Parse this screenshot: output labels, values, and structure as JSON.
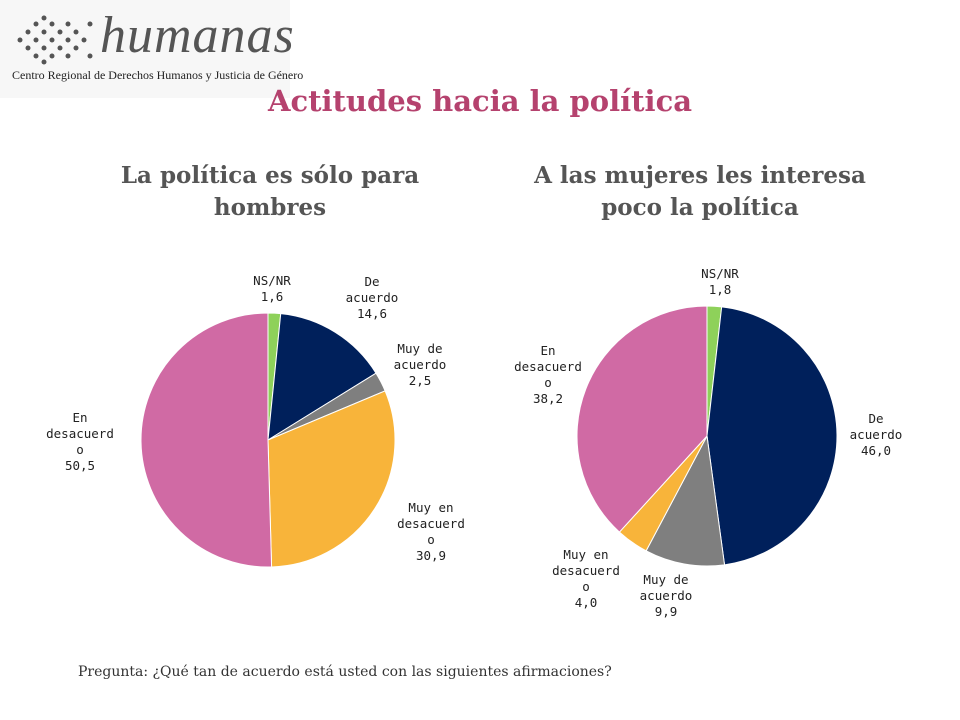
{
  "logo": {
    "wordmark": "humanas",
    "tagline": "Centro Regional de Derechos Humanos y Justicia de Género"
  },
  "title": "Actitudes hacia la política",
  "footnote": "Pregunta: ¿Qué tan de acuerdo está usted con las siguientes afirmaciones?",
  "colors": {
    "title": "#b5426e",
    "ns_nr": "#8ed15a",
    "de_acuerdo": "#00205b",
    "muy_de_acuerdo": "#7f7f7f",
    "muy_en_desacuerdo": "#f8b43a",
    "en_desacuerdo": "#d06aa4"
  },
  "chart_data": [
    {
      "type": "pie",
      "title": "La política es sólo para hombres",
      "slices": [
        {
          "label": [
            "NS/NR"
          ],
          "value": 1.6,
          "value_text": "1,6",
          "color": "#8ed15a"
        },
        {
          "label": [
            "De",
            "acuerdo"
          ],
          "value": 14.6,
          "value_text": "14,6",
          "color": "#00205b"
        },
        {
          "label": [
            "Muy de",
            "acuerdo"
          ],
          "value": 2.5,
          "value_text": "2,5",
          "color": "#7f7f7f"
        },
        {
          "label": [
            "Muy en",
            "desacuerd",
            "o"
          ],
          "value": 30.9,
          "value_text": "30,9",
          "color": "#f8b43a"
        },
        {
          "label": [
            "En",
            "desacuerd",
            "o"
          ],
          "value": 50.5,
          "value_text": "50,5",
          "color": "#d06aa4"
        }
      ]
    },
    {
      "type": "pie",
      "title": "A las mujeres les interesa poco la política",
      "slices": [
        {
          "label": [
            "NS/NR"
          ],
          "value": 1.8,
          "value_text": "1,8",
          "color": "#8ed15a"
        },
        {
          "label": [
            "De",
            "acuerdo"
          ],
          "value": 46.0,
          "value_text": "46,0",
          "color": "#00205b"
        },
        {
          "label": [
            "Muy de",
            "acuerdo"
          ],
          "value": 9.9,
          "value_text": "9,9",
          "color": "#7f7f7f"
        },
        {
          "label": [
            "Muy en",
            "desacuerd",
            "o"
          ],
          "value": 4.0,
          "value_text": "4,0",
          "color": "#f8b43a"
        },
        {
          "label": [
            "En",
            "desacuerd",
            "o"
          ],
          "value": 38.2,
          "value_text": "38,2",
          "color": "#d06aa4"
        }
      ]
    }
  ]
}
